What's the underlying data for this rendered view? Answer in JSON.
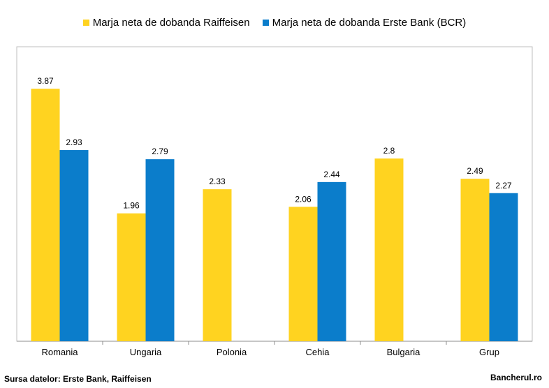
{
  "chart_data": {
    "type": "bar",
    "categories": [
      "Romania",
      "Ungaria",
      "Polonia",
      "Cehia",
      "Bulgaria",
      "Grup"
    ],
    "series": [
      {
        "name": "Marja neta de dobanda Raiffeisen",
        "color": "#FFD320",
        "values": [
          3.87,
          1.96,
          2.33,
          2.06,
          2.8,
          2.49
        ]
      },
      {
        "name": "Marja neta de dobanda Erste Bank (BCR)",
        "color": "#0B7DCB",
        "values": [
          2.93,
          2.79,
          null,
          2.44,
          null,
          2.27
        ]
      }
    ],
    "ylim": [
      0,
      4
    ],
    "grid": false,
    "legend_position": "top"
  },
  "footer": {
    "source": "Sursa datelor: Erste Bank, Raiffeisen",
    "brand": "Bancherul.ro"
  }
}
